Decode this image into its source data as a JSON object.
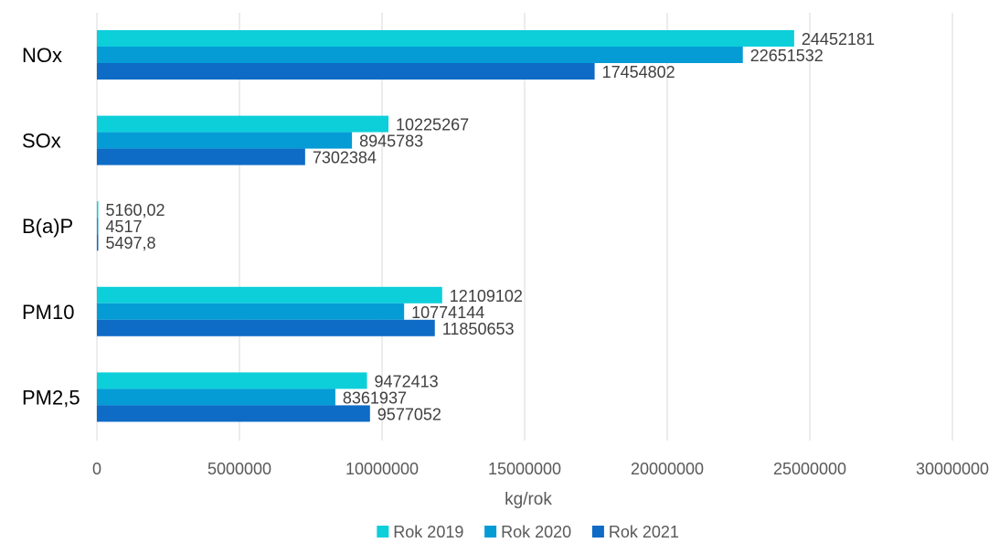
{
  "chart_data": {
    "type": "bar",
    "orientation": "horizontal",
    "categories": [
      "NOx",
      "SOx",
      "B(a)P",
      "PM10",
      "PM2,5"
    ],
    "series": [
      {
        "name": "Rok 2019",
        "color": "#0DCFDA",
        "values": [
          24452181,
          10225267,
          5160.02,
          12109102,
          9472413
        ],
        "labels": [
          "24452181",
          "10225267",
          "5160,02",
          "12109102",
          "9472413"
        ]
      },
      {
        "name": "Rok 2020",
        "color": "#059CD6",
        "values": [
          22651532,
          8945783,
          4517,
          10774144,
          8361937
        ],
        "labels": [
          "22651532",
          "8945783",
          "4517",
          "10774144",
          "8361937"
        ]
      },
      {
        "name": "Rok 2021",
        "color": "#0E6BC6",
        "values": [
          17454802,
          7302384,
          5497.8,
          11850653,
          9577052
        ],
        "labels": [
          "17454802",
          "7302384",
          "5497,8",
          "11850653",
          "9577052"
        ]
      }
    ],
    "xlim": [
      0,
      30000000
    ],
    "xticks": [
      "0",
      "5000000",
      "10000000",
      "15000000",
      "20000000",
      "25000000",
      "30000000"
    ],
    "xlabel": "kg/rok",
    "ylabel": "",
    "grid": "vertical",
    "legend_position": "bottom"
  }
}
